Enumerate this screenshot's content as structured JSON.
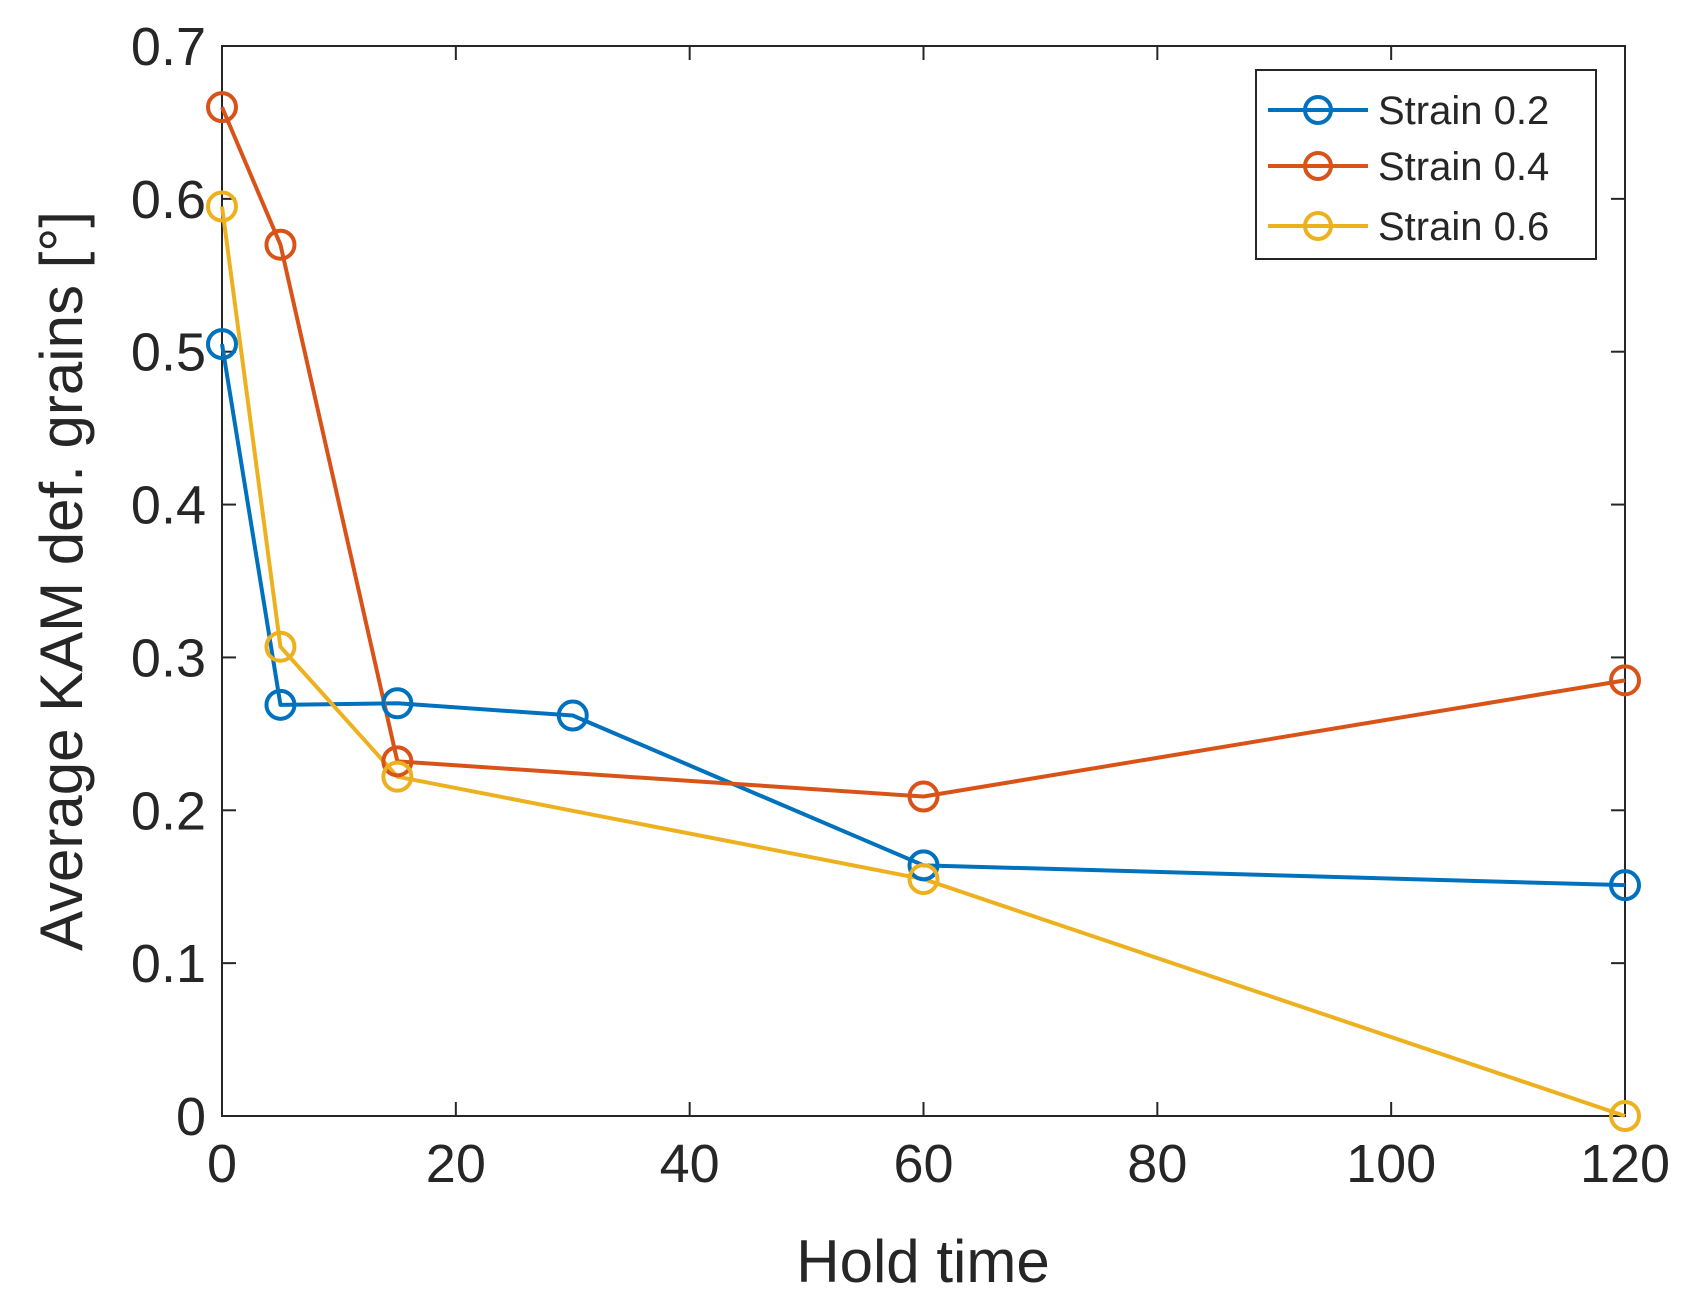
{
  "chart_data": {
    "type": "line",
    "xlabel": "Hold time",
    "ylabel": "Average KAM def. grains [°]",
    "xlim": [
      0,
      120
    ],
    "ylim": [
      0,
      0.7
    ],
    "xticks": [
      0,
      20,
      40,
      60,
      80,
      100,
      120
    ],
    "yticks": [
      0,
      0.1,
      0.2,
      0.3,
      0.4,
      0.5,
      0.6,
      0.7
    ],
    "xtick_labels": [
      "0",
      "20",
      "40",
      "60",
      "80",
      "100",
      "120"
    ],
    "ytick_labels": [
      "0",
      "0.1",
      "0.2",
      "0.3",
      "0.4",
      "0.5",
      "0.6",
      "0.7"
    ],
    "grid": false,
    "legend_position": "top-right",
    "marker": "circle",
    "series": [
      {
        "name": "Strain 0.2",
        "color": "#0072BD",
        "x": [
          0,
          5,
          15,
          30,
          60,
          120
        ],
        "y": [
          0.505,
          0.269,
          0.27,
          0.262,
          0.164,
          0.151
        ]
      },
      {
        "name": "Strain 0.4",
        "color": "#D95319",
        "x": [
          0,
          5,
          15,
          60,
          120
        ],
        "y": [
          0.66,
          0.57,
          0.232,
          0.209,
          0.285
        ]
      },
      {
        "name": "Strain 0.6",
        "color": "#EDB120",
        "x": [
          0,
          5,
          15,
          60,
          120
        ],
        "y": [
          0.595,
          0.307,
          0.222,
          0.155,
          0.0
        ]
      }
    ]
  }
}
